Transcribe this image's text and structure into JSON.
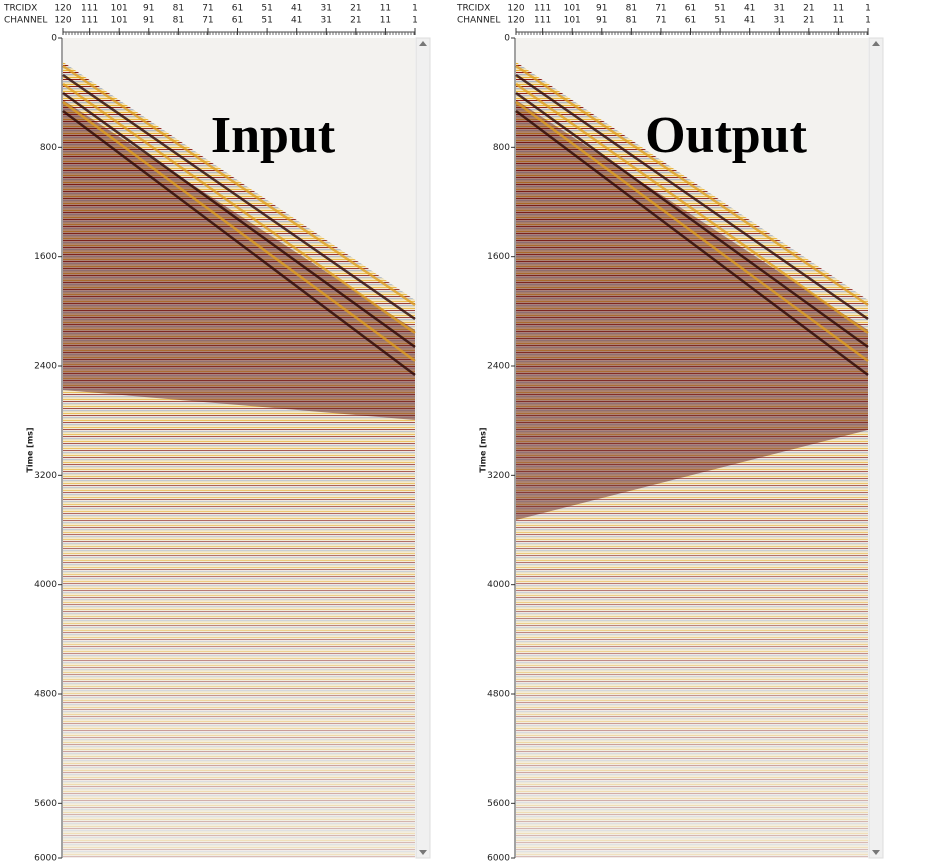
{
  "header": {
    "trace_index_label": "TRCIDX",
    "channel_label": "CHANNEL"
  },
  "trace_axis": {
    "range": [
      120,
      1
    ],
    "ticks": [
      120,
      111,
      101,
      91,
      81,
      71,
      61,
      51,
      41,
      31,
      21,
      11,
      1
    ]
  },
  "time_axis": {
    "label": "Time [ms]",
    "range": [
      0,
      6000
    ],
    "ticks": [
      0,
      800,
      1600,
      2400,
      3200,
      4000,
      4800,
      5600,
      6000
    ]
  },
  "panels": [
    {
      "title": "Input"
    },
    {
      "title": "Output"
    }
  ]
}
